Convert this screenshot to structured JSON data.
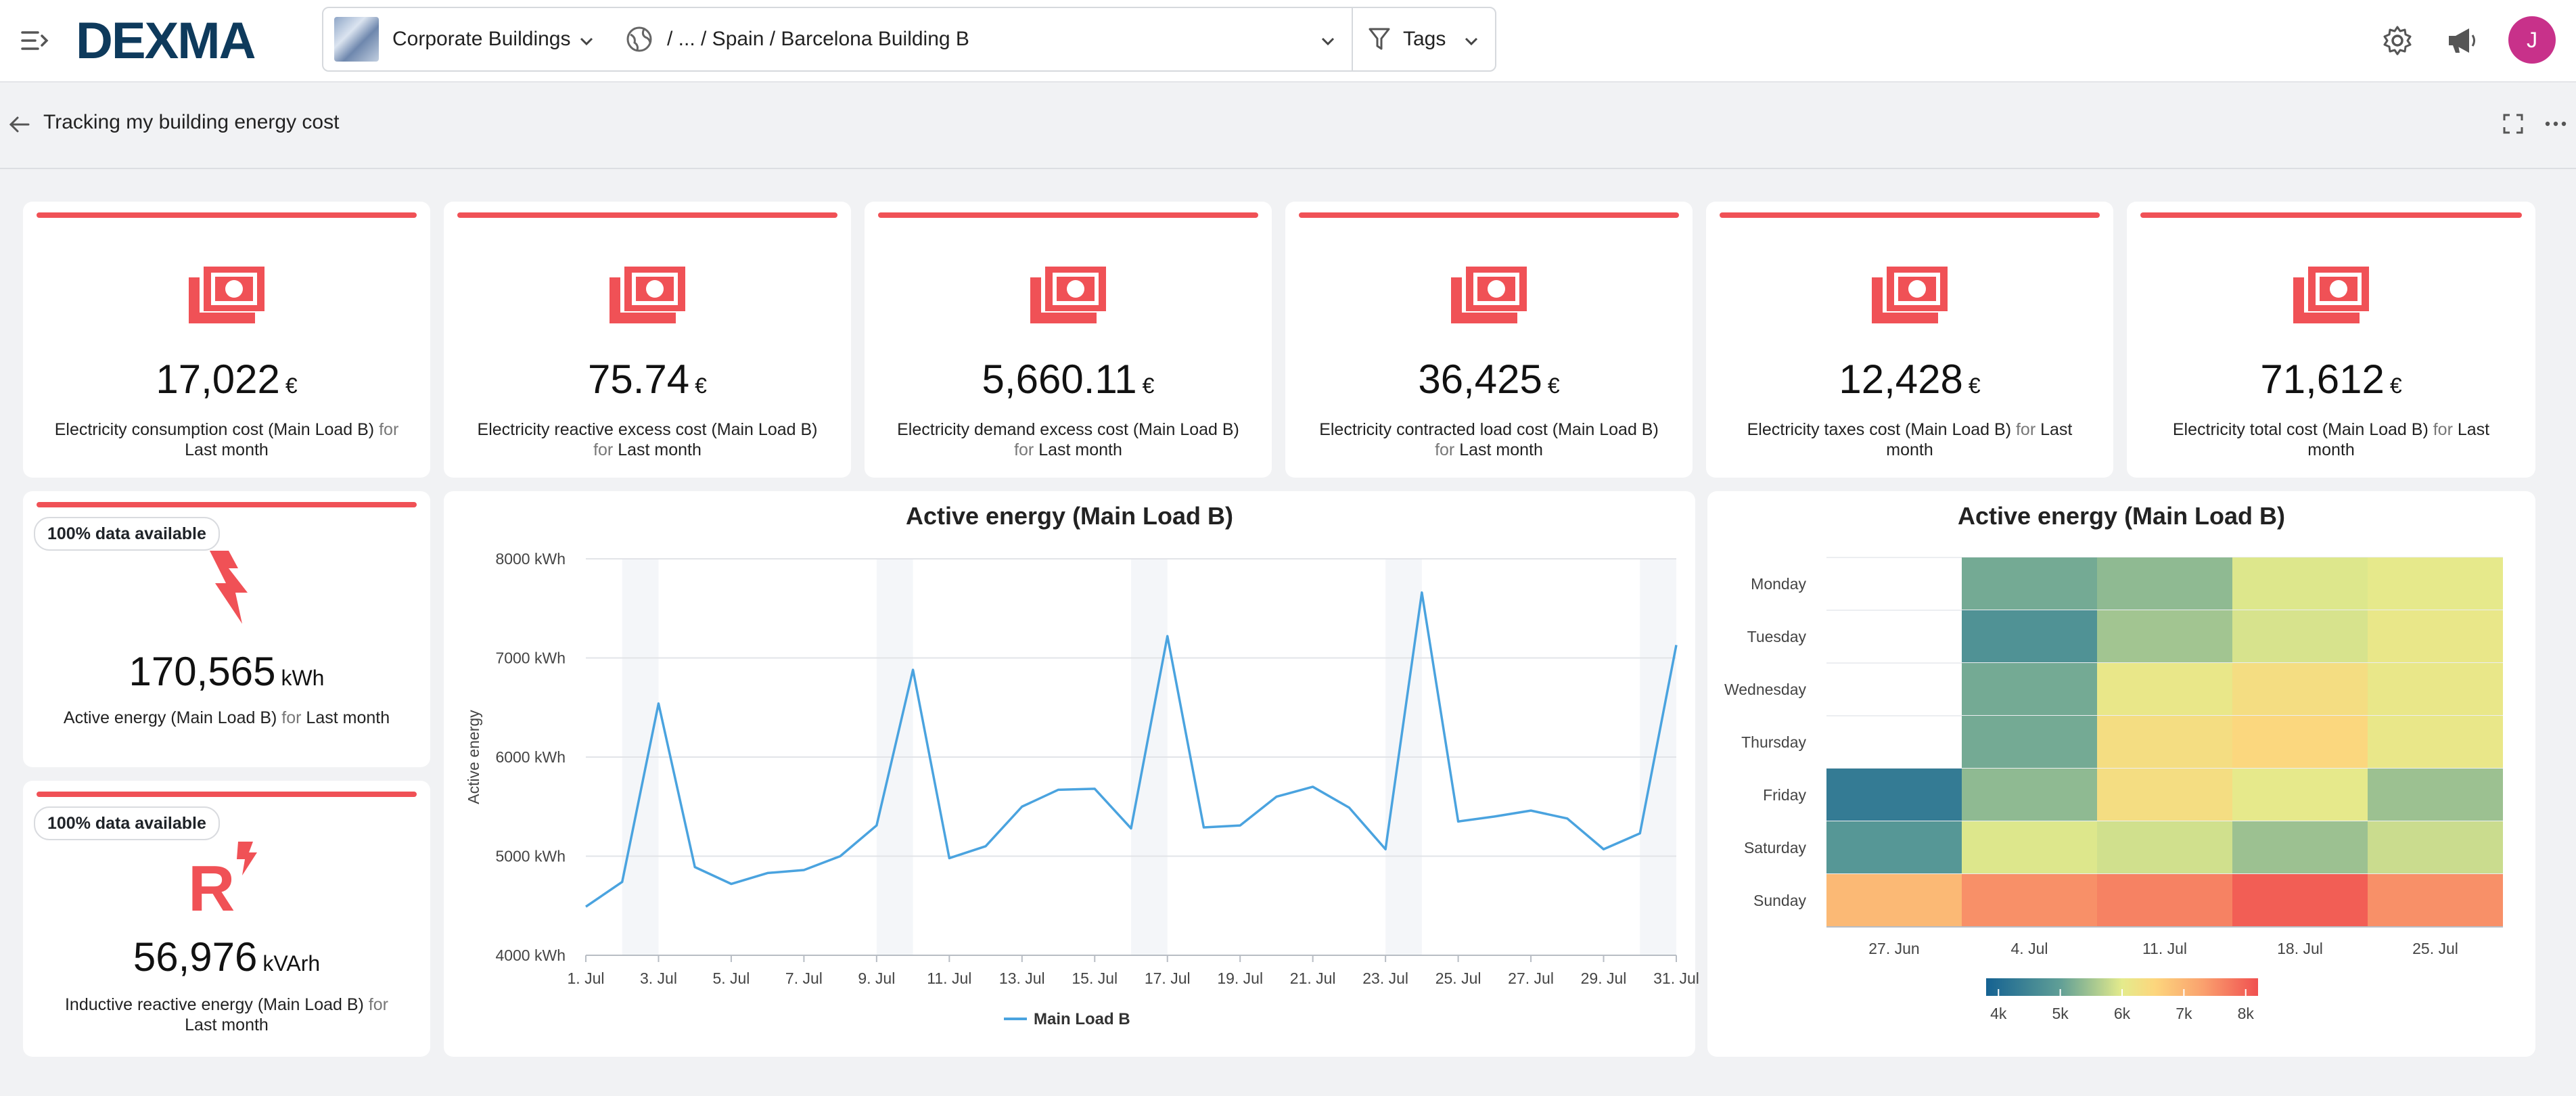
{
  "topbar": {
    "logo_text": "DEXMA",
    "org_selector": "Corporate Buildings",
    "location_path": "/ ... / Spain / Barcelona Building B",
    "tags_label": "Tags",
    "avatar_initial": "J",
    "icons": [
      "menu-collapse-icon",
      "globe-icon",
      "filter-icon",
      "gear-icon",
      "megaphone-icon"
    ]
  },
  "page": {
    "title": "Tracking my building energy cost"
  },
  "kpi_cost_cards": [
    {
      "value": "17,022",
      "unit": "€",
      "label": "Electricity consumption cost (Main Load B)",
      "for": "for",
      "period": "Last month"
    },
    {
      "value": "75.74",
      "unit": "€",
      "label": "Electricity reactive excess cost (Main Load B)",
      "for": "for",
      "period": "Last month"
    },
    {
      "value": "5,660.11",
      "unit": "€",
      "label": "Electricity demand excess cost (Main Load B)",
      "for": "for",
      "period": "Last month"
    },
    {
      "value": "36,425",
      "unit": "€",
      "label": "Electricity contracted load cost (Main Load B)",
      "for": "for",
      "period": "Last month"
    },
    {
      "value": "12,428",
      "unit": "€",
      "label": "Electricity taxes cost (Main Load B)",
      "for": "for",
      "period": "Last month"
    },
    {
      "value": "71,612",
      "unit": "€",
      "label": "Electricity total cost (Main Load B)",
      "for": "for",
      "period": "Last month"
    }
  ],
  "kpi_energy_cards": [
    {
      "badge": "100% data available",
      "value": "170,565",
      "unit": "kWh",
      "label": "Active energy (Main Load B)",
      "for": "for",
      "period": "Last month",
      "icon": "lightning-icon"
    },
    {
      "badge": "100% data available",
      "value": "56,976",
      "unit": "kVArh",
      "label": "Inductive reactive energy (Main Load B)",
      "for": "for",
      "period": "Last month",
      "icon": "reactive-energy-icon"
    }
  ],
  "colors": {
    "accent_red": "#f05156",
    "line_blue": "#4aa3df",
    "brand_navy": "#0e3a5c",
    "brand_teal": "#2ec4b6"
  },
  "chart_data": [
    {
      "type": "line",
      "title": "Active energy (Main Load B)",
      "ylabel": "Active energy",
      "yticks": [
        "4000 kWh",
        "5000 kWh",
        "6000 kWh",
        "7000 kWh",
        "8000 kWh"
      ],
      "ylim": [
        4000,
        8000
      ],
      "xticks": [
        "1. Jul",
        "3. Jul",
        "5. Jul",
        "7. Jul",
        "9. Jul",
        "11. Jul",
        "13. Jul",
        "15. Jul",
        "17. Jul",
        "19. Jul",
        "21. Jul",
        "23. Jul",
        "25. Jul",
        "27. Jul",
        "29. Jul",
        "31. Jul"
      ],
      "x": [
        1,
        2,
        3,
        4,
        5,
        6,
        7,
        8,
        9,
        10,
        11,
        12,
        13,
        14,
        15,
        16,
        17,
        18,
        19,
        20,
        21,
        22,
        23,
        24,
        25,
        26,
        27,
        28,
        29,
        30,
        31
      ],
      "weekend_bands": [
        [
          2,
          3
        ],
        [
          9,
          10
        ],
        [
          16,
          17
        ],
        [
          23,
          24
        ],
        [
          30,
          31
        ]
      ],
      "series": [
        {
          "name": "Main Load B",
          "values": [
            4490,
            4740,
            6540,
            4890,
            4720,
            4830,
            4860,
            5000,
            5310,
            6880,
            4980,
            5100,
            5500,
            5670,
            5680,
            5280,
            7220,
            5290,
            5310,
            5600,
            5700,
            5490,
            5070,
            7660,
            5350,
            5400,
            5460,
            5380,
            5070,
            5230,
            7130
          ]
        }
      ],
      "legend": "bottom-center",
      "grid": true
    },
    {
      "type": "heatmap",
      "title": "Active energy (Main Load B)",
      "rows": [
        "Monday",
        "Tuesday",
        "Wednesday",
        "Thursday",
        "Friday",
        "Saturday",
        "Sunday"
      ],
      "columns": [
        "27. Jun",
        "4. Jul",
        "11. Jul",
        "18. Jul",
        "25. Jul"
      ],
      "values": [
        [
          null,
          5150,
          5350,
          5950,
          6050
        ],
        [
          null,
          4750,
          5500,
          5900,
          6100
        ],
        [
          null,
          5150,
          6100,
          6350,
          6100
        ],
        [
          null,
          5150,
          6350,
          6500,
          6100
        ],
        [
          4300,
          5350,
          6350,
          6050,
          5450
        ],
        [
          4850,
          5950,
          5850,
          5450,
          5800
        ],
        [
          6950,
          7500,
          7650,
          8050,
          7500
        ]
      ],
      "colorbar_ticks": [
        "4k",
        "5k",
        "6k",
        "7k",
        "8k"
      ],
      "color_range": [
        3800,
        8200
      ]
    }
  ]
}
